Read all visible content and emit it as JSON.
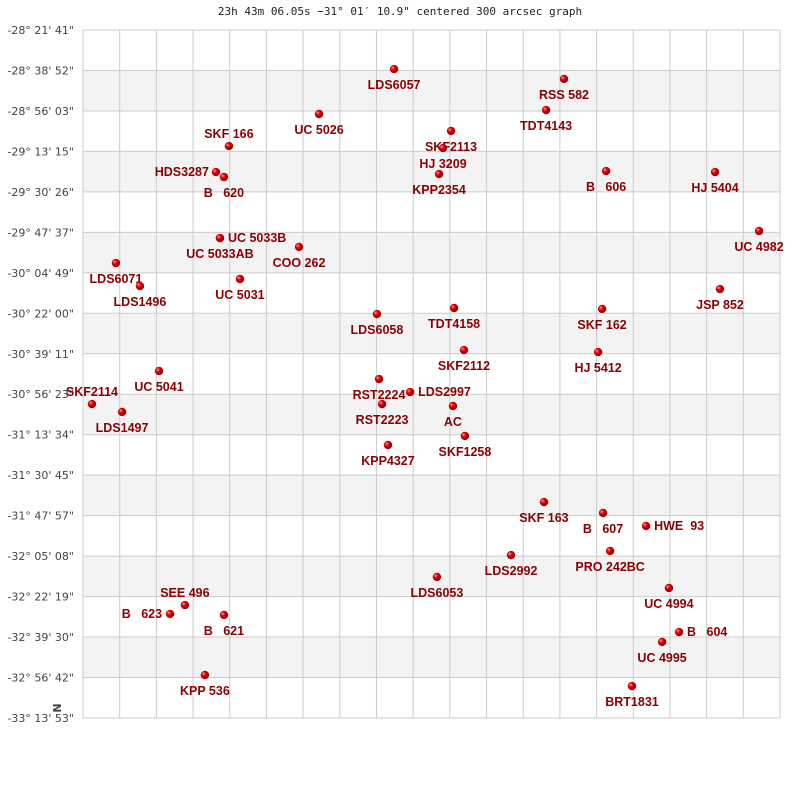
{
  "title": "23h 43m 06.05s −31° 01′ 10.9\" centered 300 arcsec graph",
  "north_label": "N",
  "colors": {
    "point": "#e00000",
    "label": "#8b0000",
    "grid": "#cccccc",
    "band": "#f3f3f3"
  },
  "chart_data": {
    "type": "scatter",
    "grid": true,
    "x_unit": "arcmin offset",
    "xlim": [
      -148.1,
      148.1
    ],
    "y_unit": "declination (deg)",
    "ylim": [
      -28.3614,
      -33.2314
    ],
    "y_ticks": [
      "-28° 21' 41\"",
      "-28° 38' 52\"",
      "-28° 56' 03\"",
      "-29° 13' 15\"",
      "-29° 30' 26\"",
      "-29° 47' 37\"",
      "-30° 04' 49\"",
      "-30° 22' 00\"",
      "-30° 39' 11\"",
      "-30° 56' 23\"",
      "-31° 13' 34\"",
      "-31° 30' 45\"",
      "-31° 47' 57\"",
      "-32° 05' 08\"",
      "-32° 22' 19\"",
      "-32° 39' 30\"",
      "-32° 56' 42\"",
      "-33° 13' 53\""
    ],
    "points": [
      {
        "label": "LDS6057",
        "x": -15.9,
        "dec": -28.638
      },
      {
        "label": "UC 5026",
        "x": -47.8,
        "dec": -28.956
      },
      {
        "label": "SKF 166",
        "x": -86.1,
        "dec": -29.183
      },
      {
        "label": "HDS3287",
        "x": -91.6,
        "dec": -29.367
      },
      {
        "label": "B   620",
        "x": -88.2,
        "dec": -29.402
      },
      {
        "label": "UC 5033AB",
        "x": -89.9,
        "dec": -29.834
      },
      {
        "label": "UC 5033B",
        "x": -89.9,
        "dec": -29.834
      },
      {
        "label": "COO 262",
        "x": -56.3,
        "dec": -29.897
      },
      {
        "label": "LDS6071",
        "x": -134.1,
        "dec": -30.011
      },
      {
        "label": "LDS1496",
        "x": -123.9,
        "dec": -30.174
      },
      {
        "label": "UC 5031",
        "x": -81.4,
        "dec": -30.124
      },
      {
        "label": "LDS6058",
        "x": -23.2,
        "dec": -30.372
      },
      {
        "label": "TDT4158",
        "x": 9.6,
        "dec": -30.329
      },
      {
        "label": "SKF 162",
        "x": 72.5,
        "dec": -30.336
      },
      {
        "label": "HJ 5412",
        "x": 70.8,
        "dec": -30.641
      },
      {
        "label": "SKF2112",
        "x": 13.8,
        "dec": -30.627
      },
      {
        "label": "UC 5041",
        "x": -115.8,
        "dec": -30.775
      },
      {
        "label": "SKF2114",
        "x": -144.3,
        "dec": -31.009
      },
      {
        "label": "LDS1497",
        "x": -131.5,
        "dec": -31.065
      },
      {
        "label": "RST2224",
        "x": -22.3,
        "dec": -30.832
      },
      {
        "label": "LDS2997",
        "x": -9.1,
        "dec": -30.924
      },
      {
        "label": "RST2223",
        "x": -21.0,
        "dec": -31.009
      },
      {
        "label": "AC",
        "x": 9.1,
        "dec": -31.023
      },
      {
        "label": "SKF1258",
        "x": 14.2,
        "dec": -31.235
      },
      {
        "label": "KPP4327",
        "x": -18.5,
        "dec": -31.299
      },
      {
        "label": "SKF 163",
        "x": 47.8,
        "dec": -31.703
      },
      {
        "label": "B   607",
        "x": 72.9,
        "dec": -31.78
      },
      {
        "label": "HWE  93",
        "x": 91.2,
        "dec": -31.872
      },
      {
        "label": "PRO 242BC",
        "x": 75.9,
        "dec": -32.049
      },
      {
        "label": "LDS2992",
        "x": 33.8,
        "dec": -32.078
      },
      {
        "label": "LDS6053",
        "x": 2.3,
        "dec": -32.233
      },
      {
        "label": "UC 4994",
        "x": 100.9,
        "dec": -32.311
      },
      {
        "label": "B   604",
        "x": 105.2,
        "dec": -32.623
      },
      {
        "label": "UC 4995",
        "x": 98.0,
        "dec": -32.693
      },
      {
        "label": "BRT1831",
        "x": 85.2,
        "dec": -33.005
      },
      {
        "label": "SEE 496",
        "x": -104.8,
        "dec": -32.432
      },
      {
        "label": "B   623",
        "x": -111.1,
        "dec": -32.495
      },
      {
        "label": "B   621",
        "x": -88.2,
        "dec": -32.502
      },
      {
        "label": "KPP 536",
        "x": -96.3,
        "dec": -32.927
      },
      {
        "label": "RSS 582",
        "x": 56.3,
        "dec": -28.708
      },
      {
        "label": "TDT4143",
        "x": 48.7,
        "dec": -28.928
      },
      {
        "label": "SKF2113",
        "x": 8.3,
        "dec": -29.076
      },
      {
        "label": "HJ 3209",
        "x": 4.9,
        "dec": -29.197
      },
      {
        "label": "KPP2354",
        "x": 3.2,
        "dec": -29.381
      },
      {
        "label": "B   606",
        "x": 74.2,
        "dec": -29.36
      },
      {
        "label": "HJ 5404",
        "x": 120.5,
        "dec": -29.367
      },
      {
        "label": "UC 4982",
        "x": 139.2,
        "dec": -29.784
      },
      {
        "label": "JSP 852",
        "x": 122.6,
        "dec": -30.195
      }
    ]
  }
}
